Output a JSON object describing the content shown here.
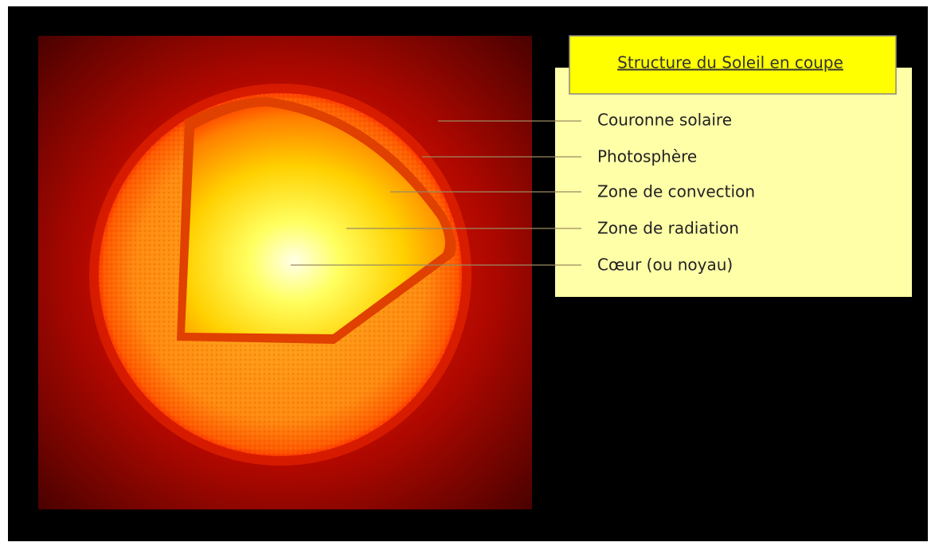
{
  "title": "Structure du Soleil en coupe",
  "labels": [
    "Couronne solaire",
    "Photosphère",
    "Zone de convection",
    "Zone de radiation",
    "Cœur (ou noyau)"
  ]
}
